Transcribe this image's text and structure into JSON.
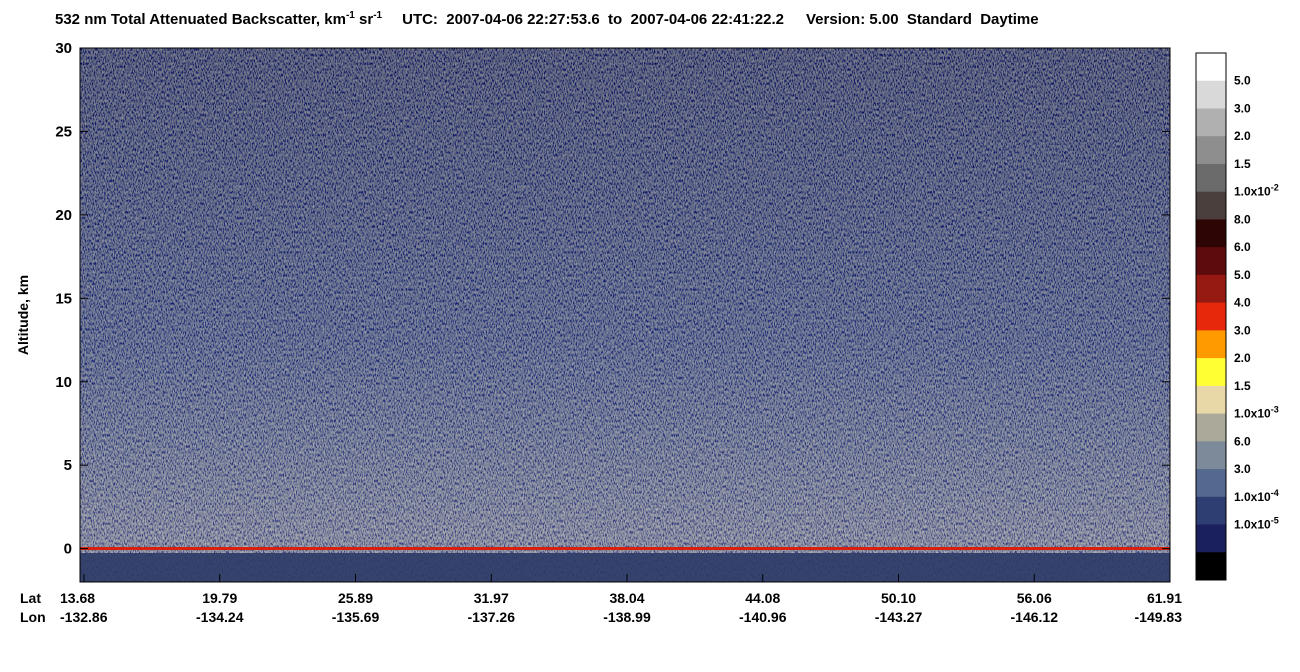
{
  "chart_data": {
    "type": "curtain",
    "title_parts": {
      "product": "532 nm Total Attenuated Backscatter, km",
      "unit_exp1": "-1",
      "unit_sr": " sr",
      "unit_exp2": "-1",
      "utc": "UTC:  2007-04-06 22:27:53.6  to  2007-04-06 22:41:22.2",
      "version": "Version: 5.00  Standard  Daytime"
    },
    "ylabel": "Altitude, km",
    "ylim": [
      -2,
      30
    ],
    "yticks": [
      0,
      5,
      10,
      15,
      20,
      25,
      30
    ],
    "x_rows": {
      "lat_name": "Lat",
      "lon_name": "Lon",
      "lat": [
        "13.68",
        "19.79",
        "25.89",
        "31.97",
        "38.04",
        "44.08",
        "50.10",
        "56.06",
        "61.91"
      ],
      "lon": [
        "-132.86",
        "-134.24",
        "-135.69",
        "-137.26",
        "-138.99",
        "-140.96",
        "-143.27",
        "-146.12",
        "-149.83"
      ]
    },
    "colorbar": {
      "colors": [
        "#ffffff",
        "#d9d9d9",
        "#b0b0b0",
        "#8e8e8e",
        "#6b6b6b",
        "#4a3f3c",
        "#2e0505",
        "#5c0c0c",
        "#961a12",
        "#e8280a",
        "#ff9a00",
        "#ffff33",
        "#e8d8a8",
        "#aaa99a",
        "#7d8a99",
        "#536a8e",
        "#2e3d72",
        "#1a1f5e",
        "#000000"
      ],
      "labels": [
        {
          "text": "5.0"
        },
        {
          "text": "3.0"
        },
        {
          "text": "2.0"
        },
        {
          "text": "1.5"
        },
        {
          "text": "1.0x10",
          "exp": "-2"
        },
        {
          "text": "8.0"
        },
        {
          "text": "6.0"
        },
        {
          "text": "5.0"
        },
        {
          "text": "4.0"
        },
        {
          "text": "3.0"
        },
        {
          "text": "2.0"
        },
        {
          "text": "1.5"
        },
        {
          "text": "1.0x10",
          "exp": "-3"
        },
        {
          "text": "6.0"
        },
        {
          "text": "3.0"
        },
        {
          "text": "1.0x10",
          "exp": "-4"
        },
        {
          "text": "1.0x10",
          "exp": "-5"
        }
      ]
    }
  }
}
